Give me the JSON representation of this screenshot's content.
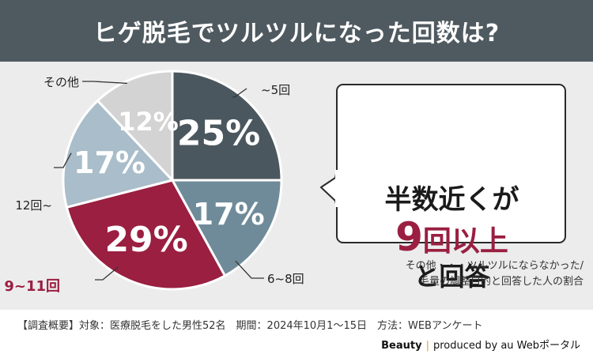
{
  "header": {
    "title": "ヒゲ脱毛でツルツルになった回数は?"
  },
  "chart_data": {
    "type": "pie",
    "title": "ヒゲ脱毛でツルツルになった回数は?",
    "categories": [
      "~5回",
      "6~8回",
      "9~11回",
      "12回~",
      "その他"
    ],
    "values": [
      25,
      17,
      29,
      17,
      12
    ],
    "value_labels": [
      "25%",
      "17%",
      "29%",
      "17%",
      "12%"
    ],
    "colors": [
      "#4b575e",
      "#6f8b99",
      "#9a1f41",
      "#a9bdca",
      "#d3d3d3"
    ],
    "highlight": "9~11回",
    "highlight_color": "#9a1f41"
  },
  "callout": {
    "line1": "半数近くが",
    "number": "9",
    "line2_rest": "回以上",
    "line3": "と回答"
  },
  "note": {
    "line1": "その他・・・ツルツルにならなかった/",
    "line2": "毛量の調整目的と回答した人の割合"
  },
  "footer": {
    "survey": "【調査概要】対象：医療脱毛をした男性52名　期間：2024年10月1〜15日　方法：WEBアンケート",
    "brand": "Beauty",
    "separator": "|",
    "credit": "produced by au Webポータル"
  }
}
